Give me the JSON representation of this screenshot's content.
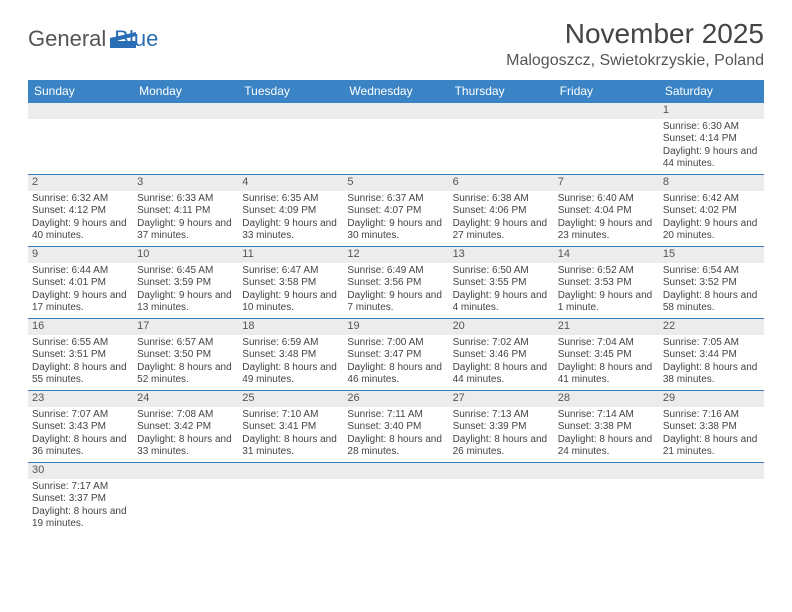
{
  "logo": {
    "part1": "General",
    "part2": "Blue"
  },
  "title": "November 2025",
  "location": "Malogoszcz, Swietokrzyskie, Poland",
  "weekdays": [
    "Sunday",
    "Monday",
    "Tuesday",
    "Wednesday",
    "Thursday",
    "Friday",
    "Saturday"
  ],
  "colors": {
    "header_bg": "#3a83c5",
    "header_text": "#ffffff",
    "daynum_bg": "#ececec",
    "border": "#3a83c5",
    "logo_accent": "#2a6fb5"
  },
  "weeks": [
    [
      {
        "day": "",
        "sunrise": "",
        "sunset": "",
        "daylight": ""
      },
      {
        "day": "",
        "sunrise": "",
        "sunset": "",
        "daylight": ""
      },
      {
        "day": "",
        "sunrise": "",
        "sunset": "",
        "daylight": ""
      },
      {
        "day": "",
        "sunrise": "",
        "sunset": "",
        "daylight": ""
      },
      {
        "day": "",
        "sunrise": "",
        "sunset": "",
        "daylight": ""
      },
      {
        "day": "",
        "sunrise": "",
        "sunset": "",
        "daylight": ""
      },
      {
        "day": "1",
        "sunrise": "Sunrise: 6:30 AM",
        "sunset": "Sunset: 4:14 PM",
        "daylight": "Daylight: 9 hours and 44 minutes."
      }
    ],
    [
      {
        "day": "2",
        "sunrise": "Sunrise: 6:32 AM",
        "sunset": "Sunset: 4:12 PM",
        "daylight": "Daylight: 9 hours and 40 minutes."
      },
      {
        "day": "3",
        "sunrise": "Sunrise: 6:33 AM",
        "sunset": "Sunset: 4:11 PM",
        "daylight": "Daylight: 9 hours and 37 minutes."
      },
      {
        "day": "4",
        "sunrise": "Sunrise: 6:35 AM",
        "sunset": "Sunset: 4:09 PM",
        "daylight": "Daylight: 9 hours and 33 minutes."
      },
      {
        "day": "5",
        "sunrise": "Sunrise: 6:37 AM",
        "sunset": "Sunset: 4:07 PM",
        "daylight": "Daylight: 9 hours and 30 minutes."
      },
      {
        "day": "6",
        "sunrise": "Sunrise: 6:38 AM",
        "sunset": "Sunset: 4:06 PM",
        "daylight": "Daylight: 9 hours and 27 minutes."
      },
      {
        "day": "7",
        "sunrise": "Sunrise: 6:40 AM",
        "sunset": "Sunset: 4:04 PM",
        "daylight": "Daylight: 9 hours and 23 minutes."
      },
      {
        "day": "8",
        "sunrise": "Sunrise: 6:42 AM",
        "sunset": "Sunset: 4:02 PM",
        "daylight": "Daylight: 9 hours and 20 minutes."
      }
    ],
    [
      {
        "day": "9",
        "sunrise": "Sunrise: 6:44 AM",
        "sunset": "Sunset: 4:01 PM",
        "daylight": "Daylight: 9 hours and 17 minutes."
      },
      {
        "day": "10",
        "sunrise": "Sunrise: 6:45 AM",
        "sunset": "Sunset: 3:59 PM",
        "daylight": "Daylight: 9 hours and 13 minutes."
      },
      {
        "day": "11",
        "sunrise": "Sunrise: 6:47 AM",
        "sunset": "Sunset: 3:58 PM",
        "daylight": "Daylight: 9 hours and 10 minutes."
      },
      {
        "day": "12",
        "sunrise": "Sunrise: 6:49 AM",
        "sunset": "Sunset: 3:56 PM",
        "daylight": "Daylight: 9 hours and 7 minutes."
      },
      {
        "day": "13",
        "sunrise": "Sunrise: 6:50 AM",
        "sunset": "Sunset: 3:55 PM",
        "daylight": "Daylight: 9 hours and 4 minutes."
      },
      {
        "day": "14",
        "sunrise": "Sunrise: 6:52 AM",
        "sunset": "Sunset: 3:53 PM",
        "daylight": "Daylight: 9 hours and 1 minute."
      },
      {
        "day": "15",
        "sunrise": "Sunrise: 6:54 AM",
        "sunset": "Sunset: 3:52 PM",
        "daylight": "Daylight: 8 hours and 58 minutes."
      }
    ],
    [
      {
        "day": "16",
        "sunrise": "Sunrise: 6:55 AM",
        "sunset": "Sunset: 3:51 PM",
        "daylight": "Daylight: 8 hours and 55 minutes."
      },
      {
        "day": "17",
        "sunrise": "Sunrise: 6:57 AM",
        "sunset": "Sunset: 3:50 PM",
        "daylight": "Daylight: 8 hours and 52 minutes."
      },
      {
        "day": "18",
        "sunrise": "Sunrise: 6:59 AM",
        "sunset": "Sunset: 3:48 PM",
        "daylight": "Daylight: 8 hours and 49 minutes."
      },
      {
        "day": "19",
        "sunrise": "Sunrise: 7:00 AM",
        "sunset": "Sunset: 3:47 PM",
        "daylight": "Daylight: 8 hours and 46 minutes."
      },
      {
        "day": "20",
        "sunrise": "Sunrise: 7:02 AM",
        "sunset": "Sunset: 3:46 PM",
        "daylight": "Daylight: 8 hours and 44 minutes."
      },
      {
        "day": "21",
        "sunrise": "Sunrise: 7:04 AM",
        "sunset": "Sunset: 3:45 PM",
        "daylight": "Daylight: 8 hours and 41 minutes."
      },
      {
        "day": "22",
        "sunrise": "Sunrise: 7:05 AM",
        "sunset": "Sunset: 3:44 PM",
        "daylight": "Daylight: 8 hours and 38 minutes."
      }
    ],
    [
      {
        "day": "23",
        "sunrise": "Sunrise: 7:07 AM",
        "sunset": "Sunset: 3:43 PM",
        "daylight": "Daylight: 8 hours and 36 minutes."
      },
      {
        "day": "24",
        "sunrise": "Sunrise: 7:08 AM",
        "sunset": "Sunset: 3:42 PM",
        "daylight": "Daylight: 8 hours and 33 minutes."
      },
      {
        "day": "25",
        "sunrise": "Sunrise: 7:10 AM",
        "sunset": "Sunset: 3:41 PM",
        "daylight": "Daylight: 8 hours and 31 minutes."
      },
      {
        "day": "26",
        "sunrise": "Sunrise: 7:11 AM",
        "sunset": "Sunset: 3:40 PM",
        "daylight": "Daylight: 8 hours and 28 minutes."
      },
      {
        "day": "27",
        "sunrise": "Sunrise: 7:13 AM",
        "sunset": "Sunset: 3:39 PM",
        "daylight": "Daylight: 8 hours and 26 minutes."
      },
      {
        "day": "28",
        "sunrise": "Sunrise: 7:14 AM",
        "sunset": "Sunset: 3:38 PM",
        "daylight": "Daylight: 8 hours and 24 minutes."
      },
      {
        "day": "29",
        "sunrise": "Sunrise: 7:16 AM",
        "sunset": "Sunset: 3:38 PM",
        "daylight": "Daylight: 8 hours and 21 minutes."
      }
    ],
    [
      {
        "day": "30",
        "sunrise": "Sunrise: 7:17 AM",
        "sunset": "Sunset: 3:37 PM",
        "daylight": "Daylight: 8 hours and 19 minutes."
      },
      {
        "day": "",
        "sunrise": "",
        "sunset": "",
        "daylight": ""
      },
      {
        "day": "",
        "sunrise": "",
        "sunset": "",
        "daylight": ""
      },
      {
        "day": "",
        "sunrise": "",
        "sunset": "",
        "daylight": ""
      },
      {
        "day": "",
        "sunrise": "",
        "sunset": "",
        "daylight": ""
      },
      {
        "day": "",
        "sunrise": "",
        "sunset": "",
        "daylight": ""
      },
      {
        "day": "",
        "sunrise": "",
        "sunset": "",
        "daylight": ""
      }
    ]
  ]
}
